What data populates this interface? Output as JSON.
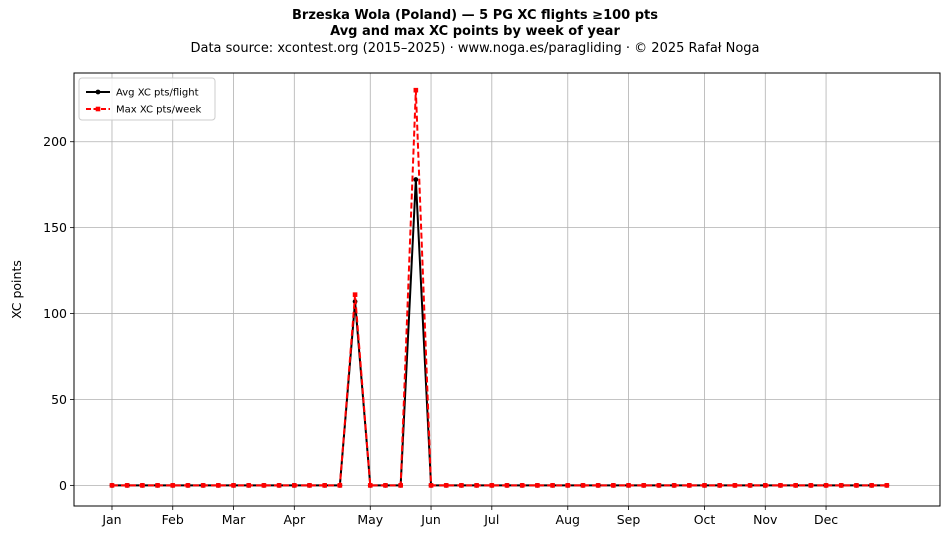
{
  "figure": {
    "title_line1": "Brzeska Wola (Poland)  —  5 PG XC flights ≥100 pts",
    "title_line2": "Avg and max XC points by week of year",
    "subtitle": "Data source: xcontest.org (2015–2025)  ·  www.noga.es/paragliding  ·  © 2025 Rafał Noga"
  },
  "chart_data": {
    "type": "line",
    "ylabel": "XC points",
    "xlabel": "",
    "x": [
      1,
      2,
      3,
      4,
      5,
      6,
      7,
      8,
      9,
      10,
      11,
      12,
      13,
      14,
      15,
      16,
      17,
      18,
      19,
      20,
      21,
      22,
      23,
      24,
      25,
      26,
      27,
      28,
      29,
      30,
      31,
      32,
      33,
      34,
      35,
      36,
      37,
      38,
      39,
      40,
      41,
      42,
      43,
      44,
      45,
      46,
      47,
      48,
      49,
      50,
      51,
      52
    ],
    "xlim": [
      -1.5,
      55.5
    ],
    "ylim": [
      -12,
      240
    ],
    "yticks": [
      0,
      50,
      100,
      150,
      200
    ],
    "month_ticks": [
      {
        "label": "Jan",
        "week": 1
      },
      {
        "label": "Feb",
        "week": 5
      },
      {
        "label": "Mar",
        "week": 9
      },
      {
        "label": "Apr",
        "week": 13
      },
      {
        "label": "May",
        "week": 18
      },
      {
        "label": "Jun",
        "week": 22
      },
      {
        "label": "Jul",
        "week": 26
      },
      {
        "label": "Aug",
        "week": 31
      },
      {
        "label": "Sep",
        "week": 35
      },
      {
        "label": "Oct",
        "week": 40
      },
      {
        "label": "Nov",
        "week": 44
      },
      {
        "label": "Dec",
        "week": 48
      }
    ],
    "grid": true,
    "legend_position": "top-left",
    "series": [
      {
        "name": "Avg XC pts/flight",
        "color": "#000000",
        "style": "solid",
        "marker": "circle",
        "values": [
          0,
          0,
          0,
          0,
          0,
          0,
          0,
          0,
          0,
          0,
          0,
          0,
          0,
          0,
          0,
          0,
          107,
          0,
          0,
          0,
          178,
          0,
          0,
          0,
          0,
          0,
          0,
          0,
          0,
          0,
          0,
          0,
          0,
          0,
          0,
          0,
          0,
          0,
          0,
          0,
          0,
          0,
          0,
          0,
          0,
          0,
          0,
          0,
          0,
          0,
          0,
          0
        ]
      },
      {
        "name": "Max XC pts/week",
        "color": "#ff0000",
        "style": "dashed",
        "marker": "square",
        "values": [
          0,
          0,
          0,
          0,
          0,
          0,
          0,
          0,
          0,
          0,
          0,
          0,
          0,
          0,
          0,
          0,
          111,
          0,
          0,
          0,
          230,
          0,
          0,
          0,
          0,
          0,
          0,
          0,
          0,
          0,
          0,
          0,
          0,
          0,
          0,
          0,
          0,
          0,
          0,
          0,
          0,
          0,
          0,
          0,
          0,
          0,
          0,
          0,
          0,
          0,
          0,
          0
        ]
      }
    ]
  }
}
